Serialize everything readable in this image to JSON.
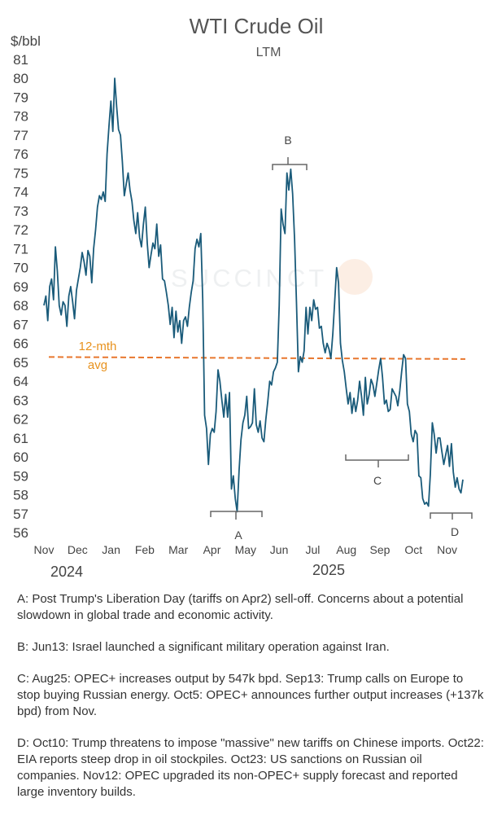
{
  "chart_data": {
    "type": "line",
    "title": "WTI Crude Oil",
    "subtitle": "LTM",
    "ylabel": "$/bbl",
    "xlabel": "",
    "ylim": [
      56,
      81
    ],
    "y_ticks": [
      56,
      57,
      58,
      59,
      60,
      61,
      62,
      63,
      64,
      65,
      66,
      67,
      68,
      69,
      70,
      71,
      72,
      73,
      74,
      75,
      76,
      77,
      78,
      79,
      80,
      81
    ],
    "x_ticks": [
      "Nov",
      "Dec",
      "Jan",
      "Feb",
      "Mar",
      "Apr",
      "May",
      "Jun",
      "Jul",
      "Aug",
      "Sep",
      "Oct",
      "Nov"
    ],
    "year_labels": [
      "2024",
      "2025"
    ],
    "avg": {
      "value": 65.3,
      "label_line1": "12-mth",
      "label_line2": "avg",
      "color": "#e8772e"
    },
    "line_color": "#1a5b7a",
    "watermark": "SUCCINCT",
    "series": [
      {
        "name": "WTI",
        "start": "Nov 2024",
        "end": "mid Nov 2025",
        "values": [
          68.0,
          68.5,
          67.2,
          69.0,
          69.4,
          68.3,
          71.1,
          69.8,
          68.0,
          67.5,
          68.2,
          68.0,
          66.9,
          68.5,
          69.0,
          68.2,
          67.3,
          68.8,
          69.4,
          70.0,
          70.8,
          70.3,
          69.6,
          70.9,
          70.6,
          69.2,
          71.0,
          72.0,
          73.2,
          73.8,
          73.6,
          74.0,
          73.5,
          76.0,
          77.5,
          78.8,
          77.2,
          80.0,
          78.5,
          77.3,
          77.0,
          75.6,
          73.8,
          74.4,
          75.0,
          74.1,
          73.5,
          72.5,
          71.8,
          72.9,
          71.6,
          71.1,
          72.3,
          73.2,
          71.3,
          70.0,
          70.7,
          71.3,
          71.0,
          72.3,
          70.6,
          71.2,
          69.4,
          69.3,
          68.7,
          68.0,
          67.0,
          67.9,
          66.3,
          67.7,
          66.6,
          67.2,
          66.0,
          67.2,
          67.4,
          66.9,
          67.9,
          68.7,
          69.3,
          71.0,
          71.5,
          71.1,
          71.8,
          68.3,
          62.2,
          61.5,
          59.6,
          61.2,
          61.5,
          61.3,
          62.4,
          64.6,
          64.0,
          63.0,
          62.1,
          63.3,
          62.1,
          63.4,
          58.3,
          59.0,
          57.8,
          57.1,
          59.3,
          60.9,
          61.8,
          62.2,
          63.2,
          61.5,
          61.6,
          61.8,
          63.6,
          61.7,
          61.3,
          61.9,
          61.0,
          60.8,
          62.0,
          62.9,
          64.0,
          63.8,
          64.5,
          64.7,
          65.0,
          68.0,
          73.1,
          72.3,
          71.8,
          75.0,
          74.1,
          75.2,
          73.9,
          71.5,
          68.2,
          64.5,
          65.3,
          65.0,
          65.6,
          67.9,
          66.5,
          67.9,
          67.2,
          68.3,
          67.8,
          67.9,
          66.8,
          66.9,
          66.0,
          65.5,
          66.0,
          65.7,
          65.2,
          66.5,
          68.2,
          70.0,
          69.2,
          66.0,
          65.1,
          64.5,
          63.6,
          62.8,
          63.4,
          62.3,
          63.1,
          62.4,
          63.0,
          64.0,
          63.2,
          62.2,
          64.2,
          62.8,
          63.3,
          64.1,
          63.8,
          63.2,
          63.9,
          64.6,
          65.2,
          64.2,
          62.8,
          63.0,
          62.4,
          62.5,
          63.6,
          63.4,
          63.2,
          62.7,
          63.5,
          64.5,
          65.4,
          65.2,
          62.8,
          62.4,
          61.2,
          60.8,
          61.4,
          61.2,
          59.0,
          58.9,
          57.8,
          57.5,
          57.6,
          57.4,
          59.1,
          61.8,
          61.2,
          60.2,
          61.0,
          61.0,
          60.3,
          59.6,
          60.1,
          60.6,
          59.5,
          60.7,
          59.2,
          58.4,
          58.9,
          58.3,
          58.1,
          58.8
        ]
      }
    ],
    "annotations": [
      {
        "label": "A"
      },
      {
        "label": "B"
      },
      {
        "label": "C"
      },
      {
        "label": "D"
      }
    ]
  },
  "notes": [
    "A: Post Trump's Liberation Day (tariffs on Apr2) sell-off. Concerns about a potential slowdown in global trade and economic activity.",
    "B: Jun13: Israel launched a significant military operation against Iran.",
    "C: Aug25: OPEC+ increases output by 547k bpd. Sep13: Trump calls on Europe to stop buying Russian energy. Oct5: OPEC+ announces further output increases (+137k bpd) from Nov.",
    "D: Oct10: Trump threatens to impose \"massive\" new tariffs on Chinese imports. Oct22: EIA reports steep drop in oil stockpiles. Oct23: US sanctions on Russian oil companies. Nov12: OPEC upgraded its non-OPEC+ supply forecast and reported large inventory builds."
  ]
}
